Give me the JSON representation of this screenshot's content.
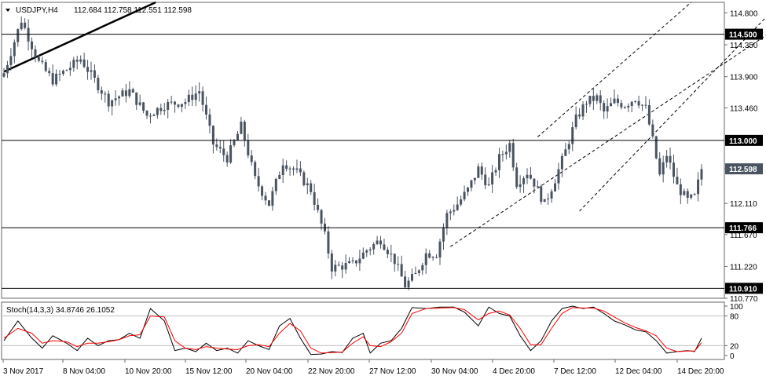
{
  "chart_data": [
    {
      "type": "candlestick",
      "title": "USDJPY,H4",
      "ohlc_readout": "112.684 112.758 112.551 112.598",
      "ylim": [
        110.77,
        114.95
      ],
      "y_ticks": [
        "114.800",
        "114.350",
        "113.900",
        "113.460",
        "113.000",
        "112.598",
        "112.110",
        "111.670",
        "111.220",
        "110.770"
      ],
      "horizontal_levels": [
        "114.500",
        "113.000",
        "111.766",
        "110.910"
      ],
      "current_price": "112.598",
      "x_ticks": [
        "3 Nov 2017",
        "8 Nov 04:00",
        "10 Nov 20:00",
        "15 Nov 12:00",
        "20 Nov 04:00",
        "22 Nov 20:00",
        "27 Nov 12:00",
        "30 Nov 04:00",
        "4 Dec 20:00",
        "7 Dec 12:00",
        "12 Dec 04:00",
        "14 Dec 20:00"
      ],
      "close_path": [
        [
          0,
          113.95
        ],
        [
          5,
          114.7
        ],
        [
          10,
          114.1
        ],
        [
          14,
          113.85
        ],
        [
          22,
          114.15
        ],
        [
          30,
          113.55
        ],
        [
          36,
          113.7
        ],
        [
          41,
          113.35
        ],
        [
          46,
          113.5
        ],
        [
          52,
          113.55
        ],
        [
          56,
          113.7
        ],
        [
          60,
          112.95
        ],
        [
          64,
          112.75
        ],
        [
          68,
          113.2
        ],
        [
          72,
          112.45
        ],
        [
          76,
          112.1
        ],
        [
          80,
          112.7
        ],
        [
          84,
          112.55
        ],
        [
          88,
          112.3
        ],
        [
          92,
          111.65
        ],
        [
          94,
          111.2
        ],
        [
          100,
          111.25
        ],
        [
          104,
          111.45
        ],
        [
          108,
          111.6
        ],
        [
          112,
          111.3
        ],
        [
          115,
          110.95
        ],
        [
          118,
          111.1
        ],
        [
          121,
          111.4
        ],
        [
          124,
          111.4
        ],
        [
          127,
          111.95
        ],
        [
          130,
          112.1
        ],
        [
          133,
          112.3
        ],
        [
          136,
          112.6
        ],
        [
          139,
          112.35
        ],
        [
          142,
          112.75
        ],
        [
          145,
          112.95
        ],
        [
          147,
          112.4
        ],
        [
          150,
          112.55
        ],
        [
          152,
          112.4
        ],
        [
          155,
          112.1
        ],
        [
          158,
          112.45
        ],
        [
          161,
          112.85
        ],
        [
          164,
          113.3
        ],
        [
          167,
          113.55
        ],
        [
          170,
          113.6
        ],
        [
          172,
          113.4
        ],
        [
          175,
          113.55
        ],
        [
          178,
          113.5
        ],
        [
          181,
          113.6
        ],
        [
          184,
          113.45
        ],
        [
          186,
          113.0
        ],
        [
          188,
          112.5
        ],
        [
          190,
          112.8
        ],
        [
          193,
          112.35
        ],
        [
          196,
          112.15
        ],
        [
          198,
          112.2
        ],
        [
          200,
          112.598
        ]
      ]
    },
    {
      "type": "line",
      "title": "Stoch(14,3,3) 34.8746 26.1052",
      "ylim": [
        0,
        100
      ],
      "y_ticks": [
        "100",
        "80",
        "20",
        "0"
      ],
      "levels": [
        80,
        20
      ],
      "series": [
        {
          "color": "#000000",
          "path": [
            [
              0,
              30
            ],
            [
              4,
              70
            ],
            [
              8,
              35
            ],
            [
              11,
              15
            ],
            [
              14,
              40
            ],
            [
              18,
              25
            ],
            [
              21,
              10
            ],
            [
              24,
              35
            ],
            [
              27,
              20
            ],
            [
              30,
              30
            ],
            [
              33,
              32
            ],
            [
              36,
              45
            ],
            [
              39,
              35
            ],
            [
              42,
              95
            ],
            [
              46,
              70
            ],
            [
              49,
              10
            ],
            [
              52,
              15
            ],
            [
              55,
              8
            ],
            [
              58,
              25
            ],
            [
              61,
              10
            ],
            [
              64,
              15
            ],
            [
              67,
              5
            ],
            [
              70,
              30
            ],
            [
              73,
              20
            ],
            [
              76,
              12
            ],
            [
              79,
              60
            ],
            [
              82,
              75
            ],
            [
              85,
              35
            ],
            [
              88,
              2
            ],
            [
              91,
              3
            ],
            [
              94,
              8
            ],
            [
              97,
              6
            ],
            [
              100,
              35
            ],
            [
              103,
              45
            ],
            [
              105,
              5
            ],
            [
              108,
              25
            ],
            [
              111,
              30
            ],
            [
              114,
              55
            ],
            [
              117,
              97
            ],
            [
              121,
              95
            ],
            [
              125,
              98
            ],
            [
              129,
              98
            ],
            [
              132,
              88
            ],
            [
              136,
              60
            ],
            [
              139,
              98
            ],
            [
              142,
              85
            ],
            [
              145,
              80
            ],
            [
              148,
              40
            ],
            [
              151,
              10
            ],
            [
              154,
              30
            ],
            [
              157,
              70
            ],
            [
              160,
              95
            ],
            [
              163,
              100
            ],
            [
              166,
              95
            ],
            [
              169,
              98
            ],
            [
              172,
              85
            ],
            [
              175,
              70
            ],
            [
              178,
              62
            ],
            [
              181,
              52
            ],
            [
              184,
              48
            ],
            [
              187,
              30
            ],
            [
              190,
              5
            ],
            [
              193,
              8
            ],
            [
              196,
              10
            ],
            [
              198,
              8
            ],
            [
              200,
              35
            ]
          ]
        },
        {
          "color": "#ff0000",
          "path": [
            [
              0,
              35
            ],
            [
              4,
              55
            ],
            [
              8,
              45
            ],
            [
              11,
              25
            ],
            [
              14,
              30
            ],
            [
              18,
              28
            ],
            [
              21,
              18
            ],
            [
              24,
              25
            ],
            [
              27,
              25
            ],
            [
              30,
              28
            ],
            [
              33,
              32
            ],
            [
              36,
              40
            ],
            [
              39,
              42
            ],
            [
              42,
              80
            ],
            [
              46,
              78
            ],
            [
              49,
              30
            ],
            [
              52,
              15
            ],
            [
              55,
              12
            ],
            [
              58,
              18
            ],
            [
              61,
              15
            ],
            [
              64,
              13
            ],
            [
              67,
              12
            ],
            [
              70,
              20
            ],
            [
              73,
              22
            ],
            [
              76,
              18
            ],
            [
              79,
              45
            ],
            [
              82,
              65
            ],
            [
              85,
              50
            ],
            [
              88,
              15
            ],
            [
              91,
              5
            ],
            [
              94,
              6
            ],
            [
              97,
              7
            ],
            [
              100,
              25
            ],
            [
              103,
              38
            ],
            [
              105,
              20
            ],
            [
              108,
              18
            ],
            [
              111,
              28
            ],
            [
              114,
              45
            ],
            [
              117,
              85
            ],
            [
              121,
              95
            ],
            [
              125,
              96
            ],
            [
              129,
              97
            ],
            [
              132,
              93
            ],
            [
              136,
              72
            ],
            [
              139,
              85
            ],
            [
              142,
              90
            ],
            [
              145,
              82
            ],
            [
              148,
              55
            ],
            [
              151,
              22
            ],
            [
              154,
              22
            ],
            [
              157,
              55
            ],
            [
              160,
              85
            ],
            [
              163,
              97
            ],
            [
              166,
              96
            ],
            [
              169,
              96
            ],
            [
              172,
              90
            ],
            [
              175,
              78
            ],
            [
              178,
              66
            ],
            [
              181,
              57
            ],
            [
              184,
              50
            ],
            [
              187,
              40
            ],
            [
              190,
              15
            ],
            [
              193,
              8
            ],
            [
              196,
              9
            ],
            [
              198,
              9
            ],
            [
              200,
              26
            ]
          ]
        }
      ]
    }
  ],
  "colors": {
    "candle": "#4a5461",
    "tag_bg": "#000000",
    "tag_fg": "#ffffff",
    "current_tag_bg": "#4a5461",
    "frame": "#666666",
    "level_line": "#000000",
    "stoch_level": "#c0c0c0"
  }
}
